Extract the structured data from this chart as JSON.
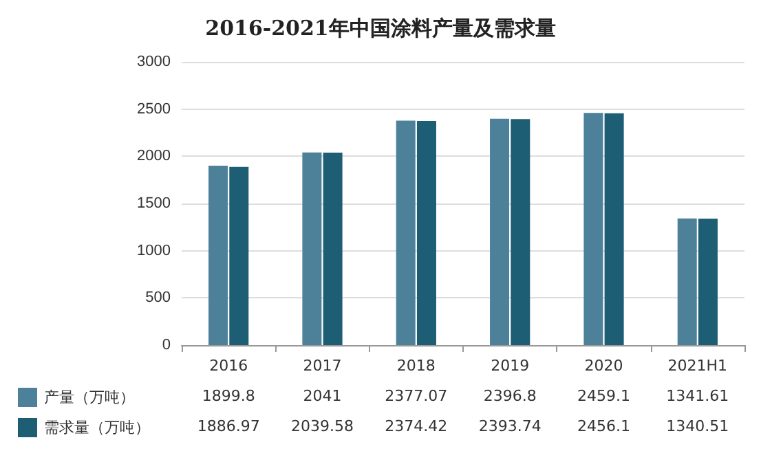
{
  "chart_data": {
    "type": "bar",
    "title": "2016-2021年中国涂料产量及需求量",
    "categories": [
      "2016",
      "2017",
      "2018",
      "2019",
      "2020",
      "2021H1"
    ],
    "series": [
      {
        "name": "产量（万吨）",
        "color": "#4d8199",
        "values": [
          1899.8,
          2041,
          2377.07,
          2396.8,
          2459.1,
          1341.61
        ]
      },
      {
        "name": "需求量（万吨）",
        "color": "#1d5e75",
        "values": [
          1886.97,
          2039.58,
          2374.42,
          2393.74,
          2456.1,
          1340.51
        ]
      }
    ],
    "ylim": [
      0,
      3000
    ],
    "yticks": [
      0,
      500,
      1000,
      1500,
      2000,
      2500,
      3000
    ],
    "grid": "y",
    "legend": "bottom left",
    "data_labels": true
  }
}
